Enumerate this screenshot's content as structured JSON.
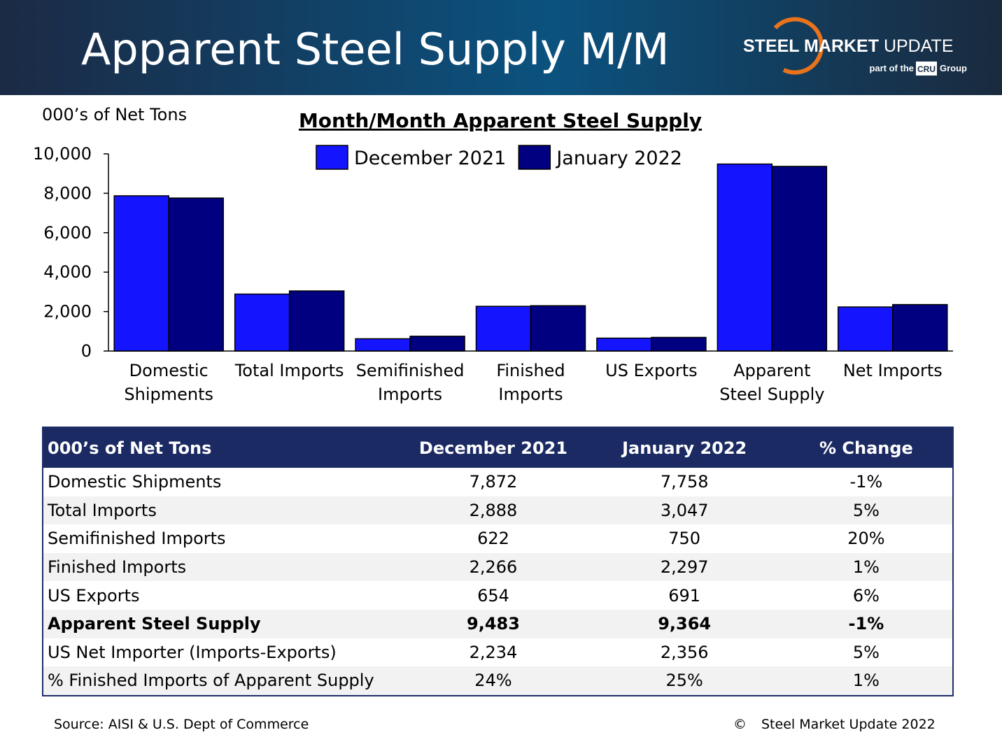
{
  "header": {
    "title": "Apparent Steel Supply M/M",
    "logo": {
      "name_bold": "STEEL MARKET",
      "name_rest": "UPDATE",
      "tagline_pre": "part of the",
      "cru": "CRU",
      "tagline_post": "Group"
    }
  },
  "chart_data": {
    "type": "bar",
    "title": "Month/Month Apparent Steel Supply",
    "y_label": "000’s of Net Tons",
    "categories": [
      "Domestic\nShipments",
      "Total Imports",
      "Semifinished\nImports",
      "Finished\nImports",
      "US Exports",
      "Apparent\nSteel Supply",
      "Net Imports"
    ],
    "series": [
      {
        "name": "December 2021",
        "color": "#1414ff",
        "values": [
          7872,
          2888,
          622,
          2266,
          654,
          9483,
          2234
        ]
      },
      {
        "name": "January 2022",
        "color": "#000080",
        "values": [
          7758,
          3047,
          750,
          2297,
          691,
          9364,
          2356
        ]
      }
    ],
    "ylim": [
      0,
      10000
    ],
    "yticks": [
      0,
      {
        "value": 2000,
        "label": "2,000"
      },
      {
        "value": 4000,
        "label": "4,000"
      },
      {
        "value": 6000,
        "label": "6,000"
      },
      {
        "value": 8000,
        "label": "8,000"
      },
      {
        "value": 10000,
        "label": "10,000"
      }
    ],
    "grid": false,
    "legend": "top"
  },
  "table": {
    "columns": [
      "000’s of Net Tons",
      "December 2021",
      "January 2022",
      "% Change"
    ],
    "rows": [
      {
        "cells": [
          "Domestic Shipments",
          "7,872",
          "7,758",
          "-1%"
        ]
      },
      {
        "cells": [
          "Total Imports",
          "2,888",
          "3,047",
          "5%"
        ]
      },
      {
        "cells": [
          "Semifinished Imports",
          "622",
          "750",
          "20%"
        ]
      },
      {
        "cells": [
          "Finished Imports",
          "2,266",
          "2,297",
          "1%"
        ]
      },
      {
        "cells": [
          "US Exports",
          "654",
          "691",
          "6%"
        ]
      },
      {
        "cells": [
          "Apparent Steel Supply",
          "9,483",
          "9,364",
          "-1%"
        ],
        "bold": true
      },
      {
        "cells": [
          "US Net Importer (Imports-Exports)",
          "2,234",
          "2,356",
          "5%"
        ]
      },
      {
        "cells": [
          "% Finished Imports of Apparent Supply",
          "24%",
          "25%",
          "1%"
        ]
      }
    ]
  },
  "footer": {
    "source": "Source:  AISI & U.S. Dept of Commerce",
    "copyright_symbol": "©",
    "copyright": "Steel Market Update 2022"
  }
}
